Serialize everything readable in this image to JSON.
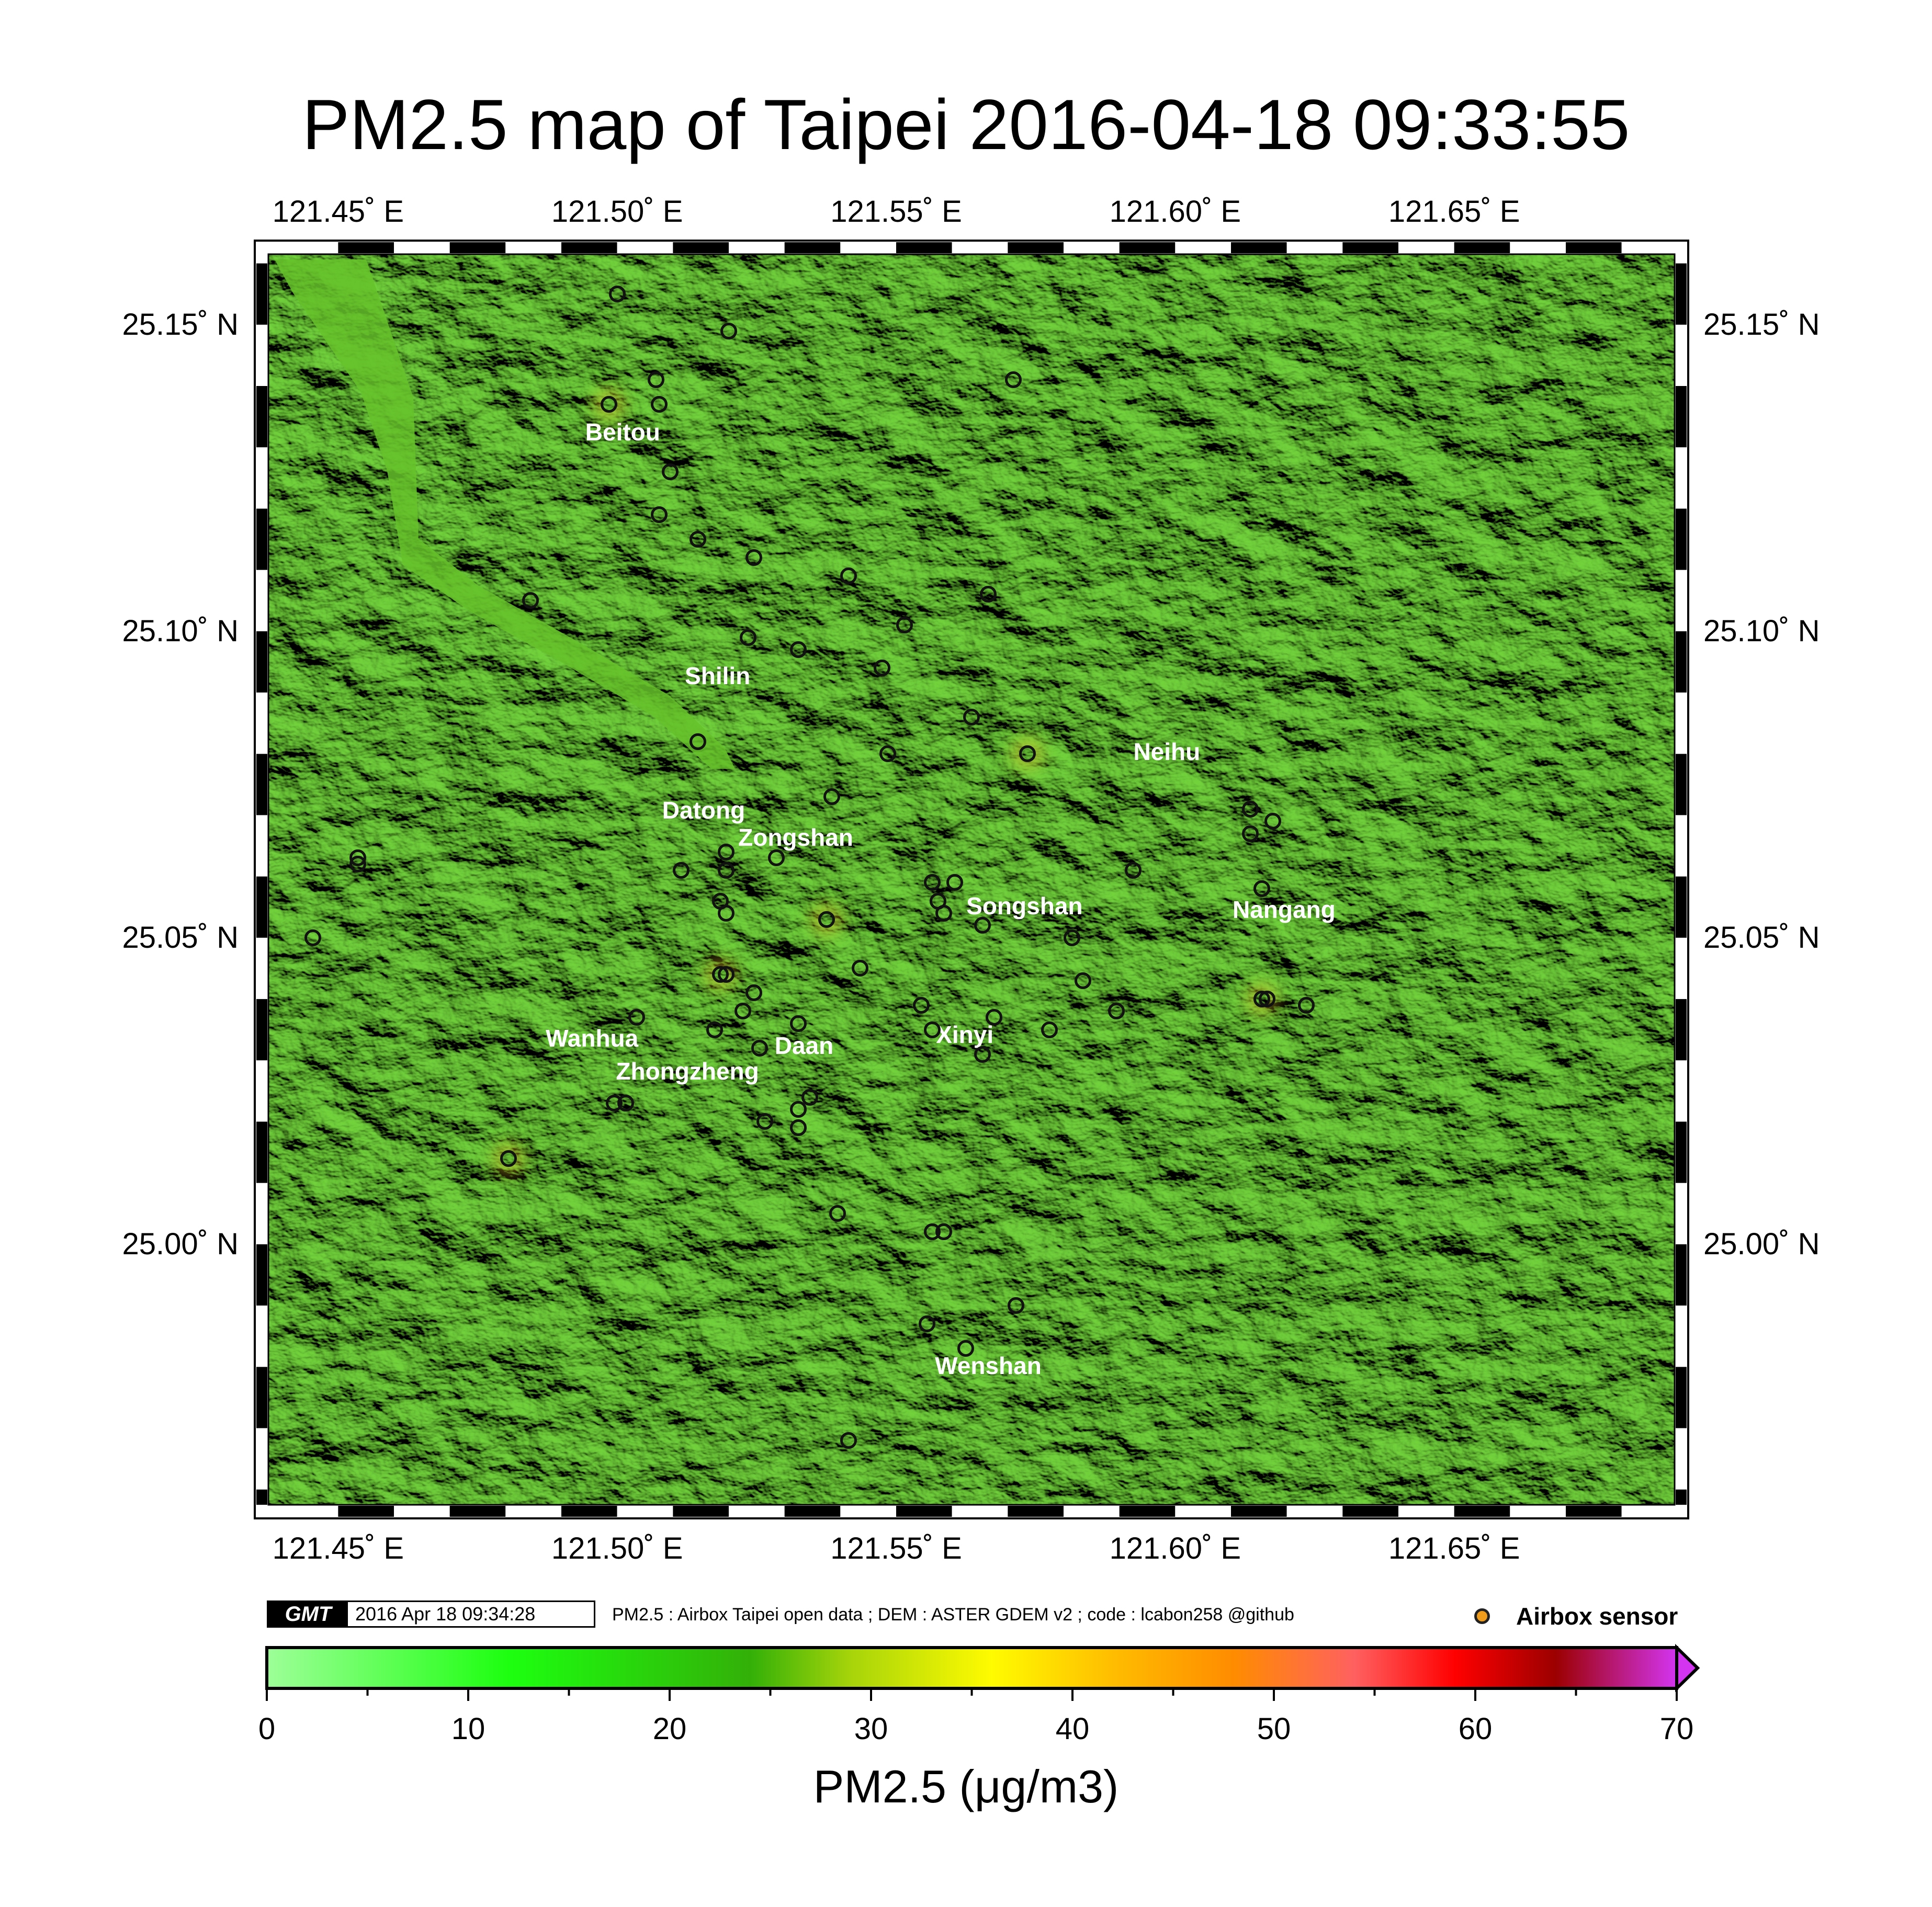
{
  "title": "PM2.5 map of Taipei 2016-04-18 09:33:55",
  "map": {
    "lon_ticks": [
      {
        "value": 121.45,
        "label": "121.45˚ E"
      },
      {
        "value": 121.5,
        "label": "121.50˚ E"
      },
      {
        "value": 121.55,
        "label": "121.55˚ E"
      },
      {
        "value": 121.6,
        "label": "121.60˚ E"
      },
      {
        "value": 121.65,
        "label": "121.65˚ E"
      }
    ],
    "lat_ticks": [
      {
        "value": 25.15,
        "label": "25.15˚ N"
      },
      {
        "value": 25.1,
        "label": "25.10˚ N"
      },
      {
        "value": 25.05,
        "label": "25.05˚ N"
      },
      {
        "value": 25.0,
        "label": "25.00˚ N"
      }
    ],
    "lon_range": [
      121.4375,
      121.6895
    ],
    "lat_range": [
      24.9575,
      25.1615
    ],
    "terrain_color": "#6fce3a",
    "river_color": "#66c22a",
    "districts": [
      {
        "name": "Beitou",
        "lon": 121.501,
        "lat": 25.1325
      },
      {
        "name": "Shilin",
        "lon": 121.518,
        "lat": 25.0927
      },
      {
        "name": "Neihu",
        "lon": 121.5985,
        "lat": 25.0804
      },
      {
        "name": "Datong",
        "lon": 121.5155,
        "lat": 25.0708
      },
      {
        "name": "Zongshan",
        "lon": 121.532,
        "lat": 25.0664
      },
      {
        "name": "Songshan",
        "lon": 121.573,
        "lat": 25.0552
      },
      {
        "name": "Nangang",
        "lon": 121.6195,
        "lat": 25.0546
      },
      {
        "name": "Wanhua",
        "lon": 121.4955,
        "lat": 25.0336
      },
      {
        "name": "Daan",
        "lon": 121.5335,
        "lat": 25.0324
      },
      {
        "name": "Xinyi",
        "lon": 121.5623,
        "lat": 25.0342
      },
      {
        "name": "Zhongzheng",
        "lon": 121.5126,
        "lat": 25.0282
      },
      {
        "name": "Wenshan",
        "lon": 121.5665,
        "lat": 24.9802
      }
    ],
    "sensors": [
      [
        121.5,
        25.155
      ],
      [
        121.52,
        25.149
      ],
      [
        121.507,
        25.141
      ],
      [
        121.4985,
        25.137
      ],
      [
        121.5075,
        25.137
      ],
      [
        121.571,
        25.141
      ],
      [
        121.5095,
        25.126
      ],
      [
        121.5075,
        25.119
      ],
      [
        121.5145,
        25.115
      ],
      [
        121.5245,
        25.112
      ],
      [
        121.5415,
        25.109
      ],
      [
        121.4845,
        25.105
      ],
      [
        121.5665,
        25.106
      ],
      [
        121.5515,
        25.101
      ],
      [
        121.5235,
        25.099
      ],
      [
        121.5325,
        25.097
      ],
      [
        121.5475,
        25.094
      ],
      [
        121.5635,
        25.086
      ],
      [
        121.5145,
        25.082
      ],
      [
        121.5485,
        25.08
      ],
      [
        121.5735,
        25.08
      ],
      [
        121.5385,
        25.073
      ],
      [
        121.6135,
        25.071
      ],
      [
        121.6135,
        25.067
      ],
      [
        121.6175,
        25.069
      ],
      [
        121.4535,
        25.063
      ],
      [
        121.4535,
        25.062
      ],
      [
        121.5195,
        25.064
      ],
      [
        121.5285,
        25.063
      ],
      [
        121.5115,
        25.061
      ],
      [
        121.5195,
        25.061
      ],
      [
        121.5925,
        25.061
      ],
      [
        121.5565,
        25.059
      ],
      [
        121.5605,
        25.059
      ],
      [
        121.6155,
        25.058
      ],
      [
        121.5185,
        25.056
      ],
      [
        121.5575,
        25.056
      ],
      [
        121.5195,
        25.054
      ],
      [
        121.5585,
        25.054
      ],
      [
        121.5375,
        25.053
      ],
      [
        121.5655,
        25.052
      ],
      [
        121.4455,
        25.05
      ],
      [
        121.5815,
        25.05
      ],
      [
        121.5435,
        25.045
      ],
      [
        121.5185,
        25.044
      ],
      [
        121.5195,
        25.044
      ],
      [
        121.5835,
        25.043
      ],
      [
        121.5245,
        25.041
      ],
      [
        121.6155,
        25.04
      ],
      [
        121.6165,
        25.04
      ],
      [
        121.6235,
        25.039
      ],
      [
        121.5545,
        25.039
      ],
      [
        121.5225,
        25.038
      ],
      [
        121.5895,
        25.038
      ],
      [
        121.5035,
        25.037
      ],
      [
        121.5675,
        25.037
      ],
      [
        121.5325,
        25.036
      ],
      [
        121.5175,
        25.035
      ],
      [
        121.5565,
        25.035
      ],
      [
        121.5775,
        25.035
      ],
      [
        121.5255,
        25.032
      ],
      [
        121.5655,
        25.031
      ],
      [
        121.5345,
        25.024
      ],
      [
        121.4995,
        25.023
      ],
      [
        121.5015,
        25.023
      ],
      [
        121.5325,
        25.022
      ],
      [
        121.5265,
        25.02
      ],
      [
        121.5325,
        25.019
      ],
      [
        121.4805,
        25.014
      ],
      [
        121.5395,
        25.005
      ],
      [
        121.5565,
        25.002
      ],
      [
        121.5585,
        25.002
      ],
      [
        121.5715,
        24.99
      ],
      [
        121.5555,
        24.987
      ],
      [
        121.5625,
        24.983
      ],
      [
        121.5415,
        24.968
      ]
    ],
    "hot_sensors": [
      [
        121.4985,
        25.137
      ],
      [
        121.5735,
        25.08
      ],
      [
        121.5375,
        25.053
      ],
      [
        121.5185,
        25.044
      ],
      [
        121.4805,
        25.014
      ],
      [
        121.6155,
        25.04
      ]
    ]
  },
  "footer": {
    "gmt_logo": "GMT",
    "timestamp": "2016 Apr 18 09:34:28",
    "credits": "PM2.5 : Airbox Taipei open data ; DEM : ASTER GDEM v2 ; code : lcabon258 @github",
    "legend_label": "Airbox sensor",
    "legend_color": "#ef9b1c"
  },
  "colorbar": {
    "title": "PM2.5 (μg/m3)",
    "range": [
      0,
      70
    ],
    "ticks": [
      {
        "value": 0,
        "label": "0"
      },
      {
        "value": 10,
        "label": "10"
      },
      {
        "value": 20,
        "label": "20"
      },
      {
        "value": 30,
        "label": "30"
      },
      {
        "value": 40,
        "label": "40"
      },
      {
        "value": 50,
        "label": "50"
      },
      {
        "value": 60,
        "label": "60"
      },
      {
        "value": 70,
        "label": "70"
      }
    ],
    "stops": [
      {
        "value": 0,
        "color": "#9dff98"
      },
      {
        "value": 12,
        "color": "#1dff10"
      },
      {
        "value": 24,
        "color": "#33b008"
      },
      {
        "value": 29,
        "color": "#a7d40a"
      },
      {
        "value": 36,
        "color": "#fffb00"
      },
      {
        "value": 42,
        "color": "#ffbd00"
      },
      {
        "value": 48,
        "color": "#ff8c00"
      },
      {
        "value": 54,
        "color": "#ff6060"
      },
      {
        "value": 59,
        "color": "#ff0000"
      },
      {
        "value": 64,
        "color": "#9c0000"
      },
      {
        "value": 70,
        "color": "#d334f0"
      }
    ]
  }
}
